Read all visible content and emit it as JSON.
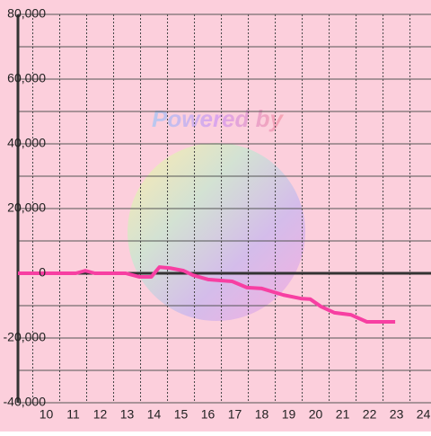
{
  "chart_data": {
    "type": "line",
    "watermark": "Powered by",
    "x": [
      9.45,
      11.6,
      11.95,
      12.3,
      13.45,
      13.95,
      14.4,
      14.7,
      15.1,
      15.6,
      15.95,
      16.5,
      17.4,
      17.95,
      18.5,
      19.3,
      19.95,
      20.3,
      20.7,
      21.2,
      21.8,
      22.4,
      23.45
    ],
    "series": [
      {
        "color": "#f73fa2",
        "values": [
          0,
          0,
          800,
          0,
          0,
          -1100,
          -1100,
          1900,
          1600,
          800,
          -600,
          -1900,
          -2500,
          -4400,
          -4700,
          -6700,
          -7800,
          -8000,
          -10300,
          -12200,
          -12800,
          -15000,
          -15000
        ]
      }
    ],
    "xlim": [
      9.45,
      24.78
    ],
    "xticks": [
      10,
      11,
      12,
      13,
      14,
      15,
      16,
      17,
      18,
      19,
      20,
      21,
      22,
      23,
      24
    ],
    "ylim": [
      -40000,
      80000
    ],
    "yticks": [
      {
        "value": -40000,
        "label": "-40,000"
      },
      {
        "value": -20000,
        "label": "-20,000"
      },
      0,
      {
        "value": 20000,
        "label": "20,000"
      },
      {
        "value": 40000,
        "label": "40,000"
      },
      {
        "value": 60000,
        "label": "60,000"
      },
      {
        "value": 80000,
        "label": "80,000"
      }
    ],
    "y_minor_ticks": [
      -30000,
      -10000,
      10000,
      30000,
      50000,
      70000
    ],
    "grid": true,
    "background": "#fccfdc"
  }
}
